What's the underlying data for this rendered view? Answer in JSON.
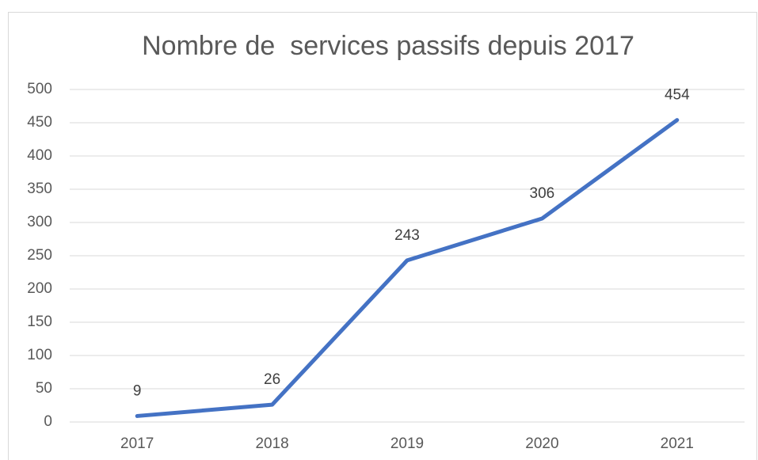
{
  "chart_data": {
    "type": "line",
    "title": "Nombre de  services passifs depuis 2017",
    "categories": [
      "2017",
      "2018",
      "2019",
      "2020",
      "2021"
    ],
    "series": [
      {
        "name": "Nombre de services passifs",
        "color": "#4472c4",
        "values": [
          9,
          26,
          243,
          306,
          454
        ]
      }
    ],
    "ylim": [
      0,
      500
    ],
    "yticks": [
      0,
      50,
      100,
      150,
      200,
      250,
      300,
      350,
      400,
      450,
      500
    ],
    "grid": true,
    "legend": false
  }
}
